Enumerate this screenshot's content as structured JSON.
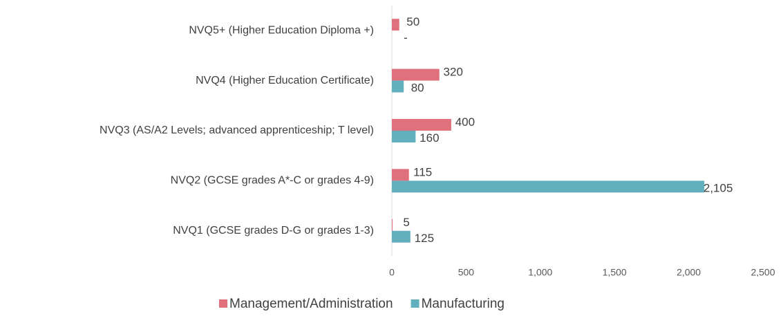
{
  "chart_data": {
    "type": "barh",
    "categories": [
      "NVQ5+ (Higher Education Diploma +)",
      "NVQ4 (Higher Education Certificate)",
      "NVQ3 (AS/A2 Levels; advanced apprenticeship; T level)",
      "NVQ2 (GCSE grades A*-C or grades 4-9)",
      "NVQ1 (GCSE grades D-G or grades 1-3)"
    ],
    "series": [
      {
        "name": "Management/Administration",
        "color": "#e0707c",
        "values": [
          50,
          320,
          400,
          115,
          5
        ],
        "value_labels": [
          "50",
          "320",
          "400",
          "115",
          "5"
        ]
      },
      {
        "name": "Manufacturing",
        "color": "#62b0bd",
        "values": [
          0,
          80,
          160,
          2105,
          125
        ],
        "value_labels": [
          "-",
          "80",
          "160",
          "2,105",
          "125"
        ]
      }
    ],
    "xlim": [
      0,
      2500
    ],
    "xticks": [
      0,
      500,
      {
        "value": 1000,
        "label": "1,000"
      },
      {
        "value": 1500,
        "label": "1,500"
      },
      {
        "value": 2000,
        "label": "2,000"
      },
      {
        "value": 2500,
        "label": "2,500"
      }
    ],
    "legend": "bottom"
  }
}
